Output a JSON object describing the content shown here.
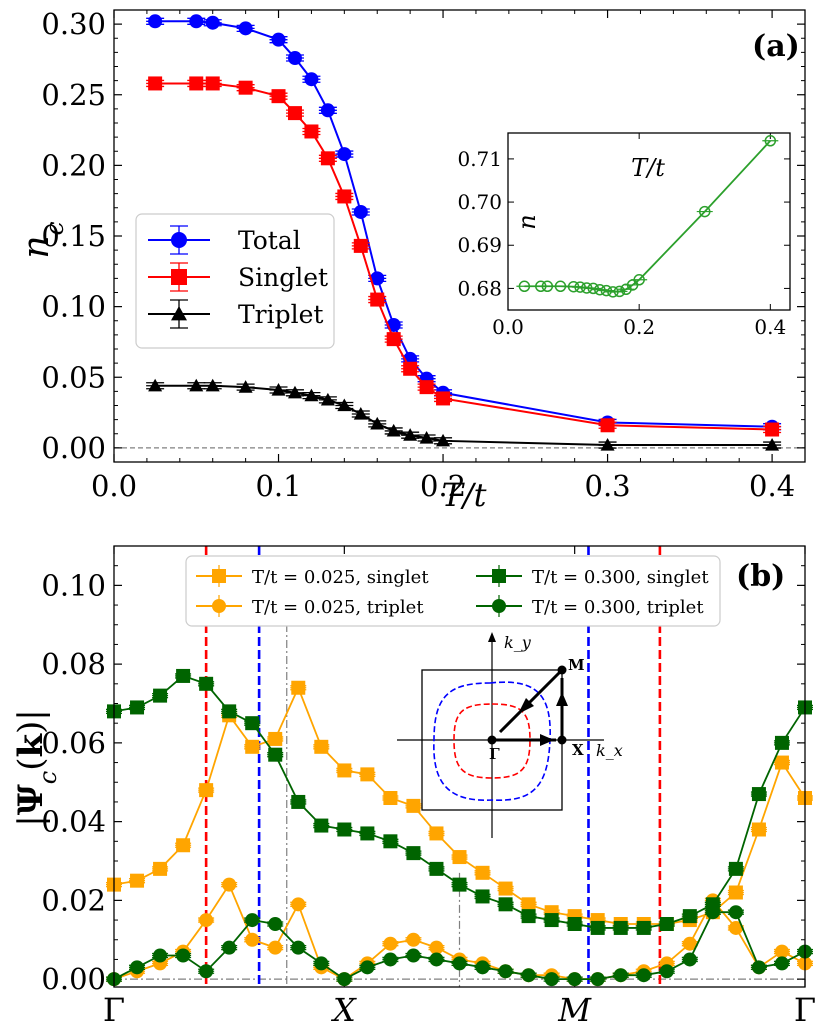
{
  "chart_data": [
    {
      "panel": "(a)",
      "type": "line",
      "xlabel": "T/t",
      "ylabel": "n_c",
      "xlim": [
        0.0,
        0.42
      ],
      "ylim": [
        -0.01,
        0.31
      ],
      "xticks": [
        "0.0",
        "0.1",
        "0.2",
        "0.3",
        "0.4"
      ],
      "yticks": [
        "0.00",
        "0.05",
        "0.10",
        "0.15",
        "0.20",
        "0.25",
        "0.30"
      ],
      "legend_position": "center-left",
      "reference_line_y": 0.0,
      "x": [
        0.025,
        0.05,
        0.06,
        0.08,
        0.1,
        0.11,
        0.12,
        0.13,
        0.14,
        0.15,
        0.16,
        0.17,
        0.18,
        0.19,
        0.2,
        0.3,
        0.4
      ],
      "series": [
        {
          "name": "Total",
          "color": "#0000ff",
          "marker": "circle",
          "values": [
            0.302,
            0.302,
            0.301,
            0.297,
            0.289,
            0.276,
            0.261,
            0.239,
            0.208,
            0.167,
            0.12,
            0.087,
            0.063,
            0.049,
            0.039,
            0.018,
            0.015
          ]
        },
        {
          "name": "Singlet",
          "color": "#ff0000",
          "marker": "square",
          "values": [
            0.258,
            0.258,
            0.258,
            0.255,
            0.249,
            0.237,
            0.224,
            0.205,
            0.178,
            0.143,
            0.105,
            0.077,
            0.056,
            0.043,
            0.035,
            0.016,
            0.013
          ]
        },
        {
          "name": "Triplet",
          "color": "#000000",
          "marker": "triangle",
          "values": [
            0.044,
            0.044,
            0.044,
            0.043,
            0.041,
            0.039,
            0.037,
            0.034,
            0.03,
            0.024,
            0.017,
            0.012,
            0.009,
            0.007,
            0.005,
            0.002,
            0.002
          ]
        }
      ],
      "inset": {
        "type": "line",
        "ylabel": "n",
        "xlabel": "T/t",
        "xlim": [
          0.0,
          0.43
        ],
        "ylim": [
          0.675,
          0.716
        ],
        "xticks": [
          "0.0",
          "0.2",
          "0.4"
        ],
        "yticks": [
          "0.68",
          "0.69",
          "0.70",
          "0.71"
        ],
        "color": "#2ca02c",
        "marker": "open-circle",
        "x": [
          0.025,
          0.05,
          0.06,
          0.08,
          0.1,
          0.11,
          0.12,
          0.13,
          0.14,
          0.15,
          0.16,
          0.17,
          0.18,
          0.19,
          0.2,
          0.3,
          0.4
        ],
        "values": [
          0.6805,
          0.6805,
          0.6805,
          0.6805,
          0.6804,
          0.6803,
          0.6801,
          0.68,
          0.6797,
          0.6795,
          0.6792,
          0.6793,
          0.6798,
          0.6808,
          0.682,
          0.6978,
          0.7142
        ]
      }
    },
    {
      "panel": "(b)",
      "type": "line",
      "ylabel": "|Ψ_c(k)|",
      "ylim": [
        -0.002,
        0.11
      ],
      "yticks": [
        "0.00",
        "0.02",
        "0.04",
        "0.06",
        "0.08",
        "0.10"
      ],
      "path_points": [
        "Γ",
        "X",
        "M",
        "Γ"
      ],
      "n_points": 31,
      "x_index_of_points": [
        0,
        10,
        20,
        30
      ],
      "vertical_lines": [
        {
          "color": "#ff0000",
          "style": "dashed",
          "x": 4
        },
        {
          "color": "#0000ff",
          "style": "dashed",
          "x": 6.3
        },
        {
          "color": "#808080",
          "style": "dash-dot",
          "x": 7.5
        },
        {
          "color": "#808080",
          "style": "dash-dot",
          "x": 15
        },
        {
          "color": "#0000ff",
          "style": "dashed",
          "x": 20.6
        },
        {
          "color": "#ff0000",
          "style": "dashed",
          "x": 23.7
        }
      ],
      "legend_position": "top",
      "series": [
        {
          "name": "T/t = 0.025, singlet",
          "color": "#ffa500",
          "marker": "square",
          "values": [
            0.024,
            0.025,
            0.028,
            0.034,
            0.048,
            0.067,
            0.059,
            0.061,
            0.074,
            0.059,
            0.053,
            0.052,
            0.046,
            0.044,
            0.037,
            0.031,
            0.027,
            0.023,
            0.019,
            0.017,
            0.016,
            0.015,
            0.014,
            0.014,
            0.014,
            0.015,
            0.017,
            0.022,
            0.038,
            0.055,
            0.046
          ]
        },
        {
          "name": "T/t = 0.025, triplet",
          "color": "#ffa500",
          "marker": "circle",
          "values": [
            0.0,
            0.002,
            0.004,
            0.007,
            0.015,
            0.024,
            0.01,
            0.008,
            0.019,
            0.003,
            0.0,
            0.004,
            0.009,
            0.01,
            0.008,
            0.005,
            0.004,
            0.002,
            0.001,
            0.001,
            0.0,
            0.0,
            0.001,
            0.002,
            0.004,
            0.009,
            0.02,
            0.013,
            0.003,
            0.007,
            0.004
          ]
        },
        {
          "name": "T/t = 0.300, singlet",
          "color": "#006400",
          "marker": "square",
          "values": [
            0.068,
            0.069,
            0.072,
            0.077,
            0.075,
            0.068,
            0.065,
            0.057,
            0.045,
            0.039,
            0.038,
            0.037,
            0.035,
            0.032,
            0.028,
            0.024,
            0.021,
            0.019,
            0.016,
            0.015,
            0.014,
            0.013,
            0.013,
            0.013,
            0.014,
            0.016,
            0.019,
            0.028,
            0.047,
            0.06,
            0.069
          ]
        },
        {
          "name": "T/t = 0.300, triplet",
          "color": "#006400",
          "marker": "circle",
          "values": [
            0.0,
            0.003,
            0.006,
            0.006,
            0.002,
            0.008,
            0.015,
            0.014,
            0.008,
            0.004,
            0.0,
            0.003,
            0.005,
            0.006,
            0.005,
            0.004,
            0.003,
            0.002,
            0.001,
            0.0,
            0.0,
            0.0,
            0.001,
            0.001,
            0.002,
            0.005,
            0.017,
            0.017,
            0.003,
            0.004,
            0.007
          ]
        }
      ],
      "inset": {
        "labels": [
          "k_y",
          "M",
          "Γ",
          "X",
          "k_x"
        ]
      }
    }
  ]
}
